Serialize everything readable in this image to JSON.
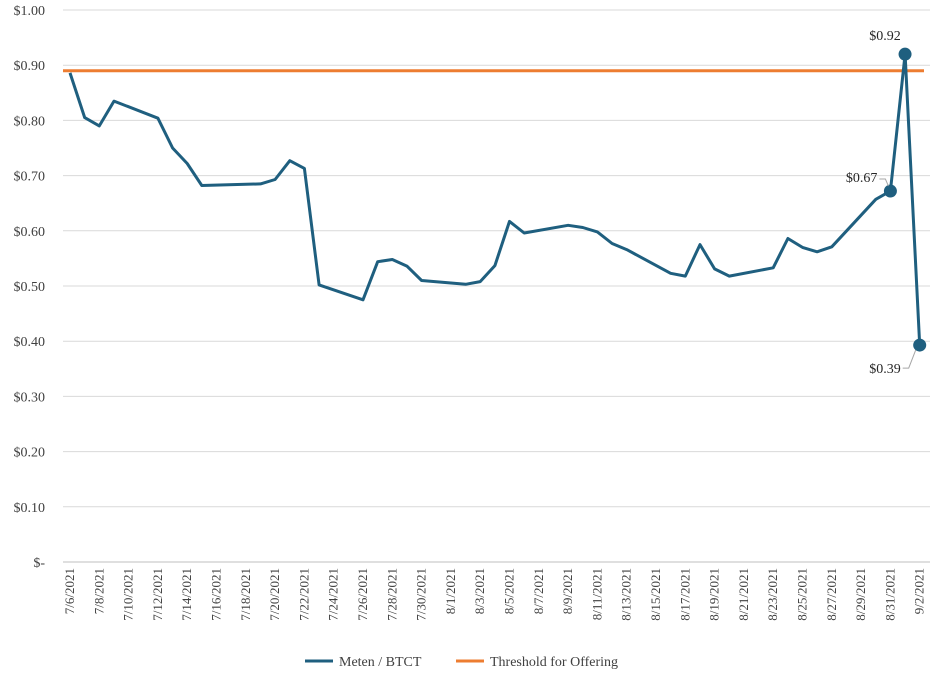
{
  "chart_data": {
    "type": "line",
    "title": "",
    "xlabel": "",
    "ylabel": "",
    "ylim": [
      0,
      1.0
    ],
    "yticks": [
      {
        "value": 1.0,
        "label": "$1.00"
      },
      {
        "value": 0.9,
        "label": "$0.90"
      },
      {
        "value": 0.8,
        "label": "$0.80"
      },
      {
        "value": 0.7,
        "label": "$0.70"
      },
      {
        "value": 0.6,
        "label": "$0.60"
      },
      {
        "value": 0.5,
        "label": "$0.50"
      },
      {
        "value": 0.4,
        "label": "$0.40"
      },
      {
        "value": 0.3,
        "label": "$0.30"
      },
      {
        "value": 0.2,
        "label": "$0.20"
      },
      {
        "value": 0.1,
        "label": "$0.10"
      },
      {
        "value": 0.0,
        "label": "$-"
      }
    ],
    "xtick_labels": [
      "7/6/2021",
      "7/8/2021",
      "7/10/2021",
      "7/12/2021",
      "7/14/2021",
      "7/16/2021",
      "7/18/2021",
      "7/20/2021",
      "7/22/2021",
      "7/24/2021",
      "7/26/2021",
      "7/28/2021",
      "7/30/2021",
      "8/1/2021",
      "8/3/2021",
      "8/5/2021",
      "8/7/2021",
      "8/9/2021",
      "8/11/2021",
      "8/13/2021",
      "8/15/2021",
      "8/17/2021",
      "8/19/2021",
      "8/21/2021",
      "8/23/2021",
      "8/25/2021",
      "8/27/2021",
      "8/29/2021",
      "8/31/2021",
      "9/2/2021"
    ],
    "x_start": "2021-07-06",
    "series": [
      {
        "name": "Meten / BTCT",
        "color": "#1f5f7f",
        "points": [
          {
            "date": "2021-07-06",
            "value": 0.886
          },
          {
            "date": "2021-07-07",
            "value": 0.805
          },
          {
            "date": "2021-07-08",
            "value": 0.79
          },
          {
            "date": "2021-07-09",
            "value": 0.835
          },
          {
            "date": "2021-07-12",
            "value": 0.804
          },
          {
            "date": "2021-07-13",
            "value": 0.75
          },
          {
            "date": "2021-07-14",
            "value": 0.722
          },
          {
            "date": "2021-07-15",
            "value": 0.682
          },
          {
            "date": "2021-07-19",
            "value": 0.685
          },
          {
            "date": "2021-07-20",
            "value": 0.693
          },
          {
            "date": "2021-07-21",
            "value": 0.727
          },
          {
            "date": "2021-07-22",
            "value": 0.713
          },
          {
            "date": "2021-07-23",
            "value": 0.502
          },
          {
            "date": "2021-07-26",
            "value": 0.475
          },
          {
            "date": "2021-07-27",
            "value": 0.544
          },
          {
            "date": "2021-07-28",
            "value": 0.548
          },
          {
            "date": "2021-07-29",
            "value": 0.536
          },
          {
            "date": "2021-07-30",
            "value": 0.51
          },
          {
            "date": "2021-08-02",
            "value": 0.503
          },
          {
            "date": "2021-08-03",
            "value": 0.508
          },
          {
            "date": "2021-08-04",
            "value": 0.537
          },
          {
            "date": "2021-08-05",
            "value": 0.617
          },
          {
            "date": "2021-08-06",
            "value": 0.596
          },
          {
            "date": "2021-08-09",
            "value": 0.61
          },
          {
            "date": "2021-08-10",
            "value": 0.606
          },
          {
            "date": "2021-08-11",
            "value": 0.598
          },
          {
            "date": "2021-08-12",
            "value": 0.577
          },
          {
            "date": "2021-08-13",
            "value": 0.566
          },
          {
            "date": "2021-08-16",
            "value": 0.523
          },
          {
            "date": "2021-08-17",
            "value": 0.518
          },
          {
            "date": "2021-08-18",
            "value": 0.575
          },
          {
            "date": "2021-08-19",
            "value": 0.531
          },
          {
            "date": "2021-08-20",
            "value": 0.518
          },
          {
            "date": "2021-08-23",
            "value": 0.533
          },
          {
            "date": "2021-08-24",
            "value": 0.586
          },
          {
            "date": "2021-08-25",
            "value": 0.57
          },
          {
            "date": "2021-08-26",
            "value": 0.562
          },
          {
            "date": "2021-08-27",
            "value": 0.571
          },
          {
            "date": "2021-08-30",
            "value": 0.657
          },
          {
            "date": "2021-08-31",
            "value": 0.672
          },
          {
            "date": "2021-09-01",
            "value": 0.92
          },
          {
            "date": "2021-09-02",
            "value": 0.393
          }
        ]
      },
      {
        "name": "Threshold for Offering",
        "color": "#ed7d31",
        "points": [
          {
            "date": "2021-07-06",
            "value": 0.89
          },
          {
            "date": "2021-09-02",
            "value": 0.89
          }
        ]
      }
    ],
    "annotations": [
      {
        "date": "2021-08-31",
        "value": 0.672,
        "label": "$0.67",
        "position": "left"
      },
      {
        "date": "2021-09-01",
        "value": 0.92,
        "label": "$0.92",
        "position": "above"
      },
      {
        "date": "2021-09-02",
        "value": 0.393,
        "label": "$0.39",
        "position": "below-left"
      }
    ],
    "grid": true,
    "legend": "bottom-center"
  }
}
